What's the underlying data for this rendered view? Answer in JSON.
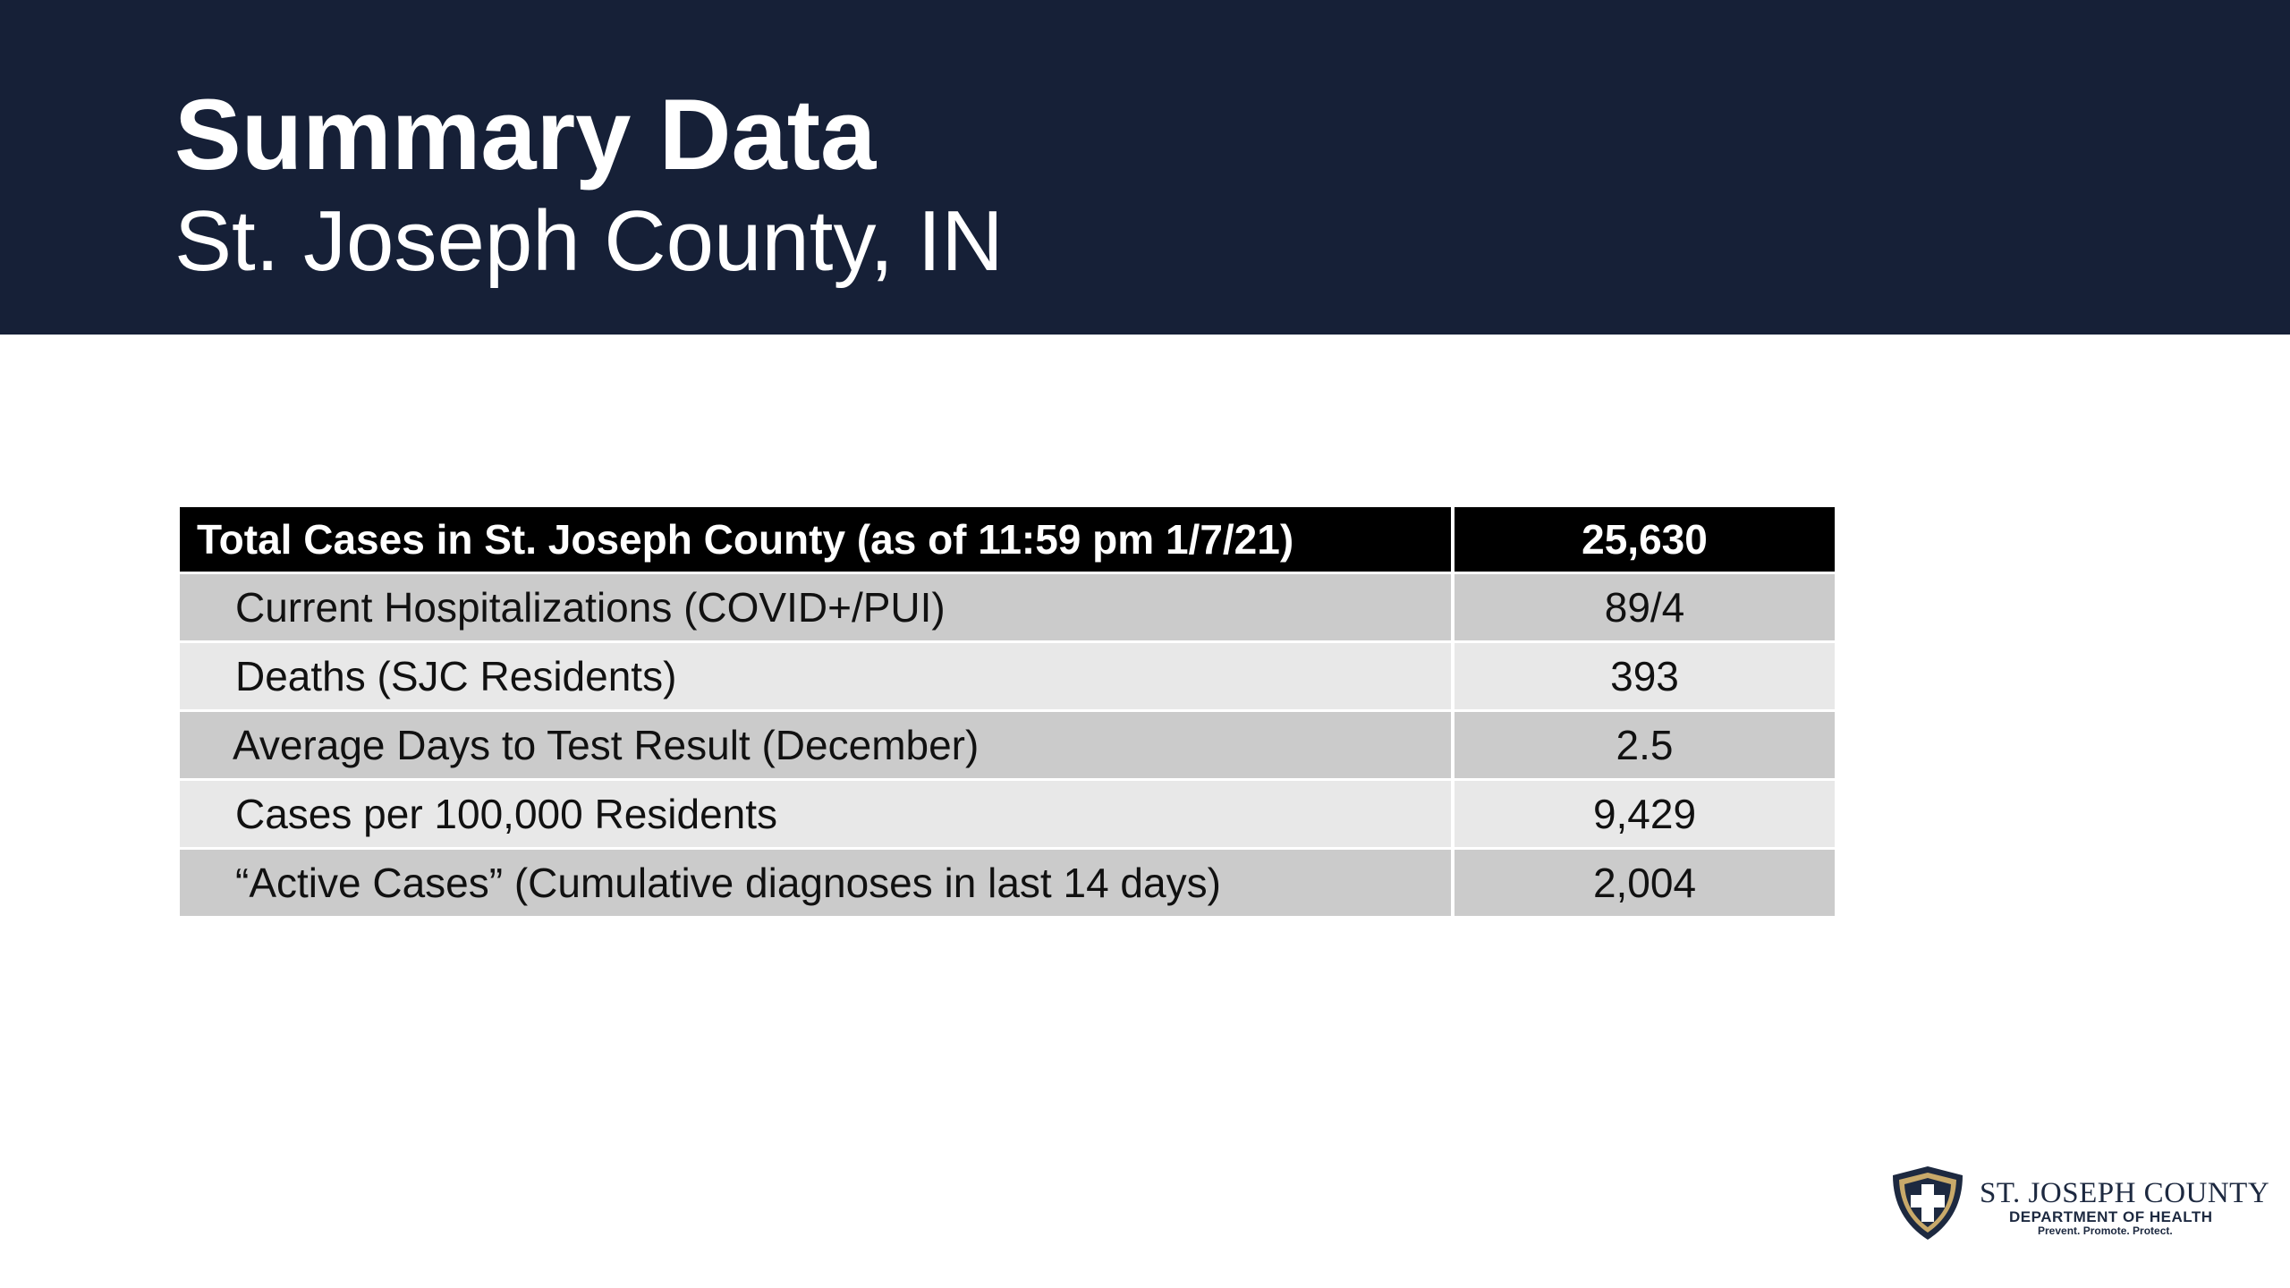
{
  "header": {
    "title": "Summary Data",
    "subtitle": "St. Joseph County, IN"
  },
  "table": {
    "header": {
      "label": "Total Cases in St. Joseph County (as of 11:59 pm 1/7/21)",
      "value": "25,630"
    },
    "rows": [
      {
        "label": "Current Hospitalizations (COVID+/PUI)",
        "value": "89/4"
      },
      {
        "label": "Deaths (SJC Residents)",
        "value": "393"
      },
      {
        "label": "Average Days to Test Result (December)",
        "value": "2.5"
      },
      {
        "label": "Cases per 100,000 Residents",
        "value": "9,429"
      },
      {
        "label": "“Active Cases” (Cumulative diagnoses in last 14 days)",
        "value": "2,004"
      }
    ]
  },
  "logo": {
    "name_first": "ST. JOSEPH COUNTY",
    "department": "DEPARTMENT OF HEALTH",
    "tagline": "Prevent. Promote. Protect.",
    "icon": "shield-cross-icon"
  },
  "colors": {
    "header_band": "#162037",
    "table_header": "#000000",
    "row_dark": "#cbcbcb",
    "row_light": "#e8e8e8",
    "shield_gold": "#c8a96a",
    "shield_navy": "#1d2940"
  }
}
